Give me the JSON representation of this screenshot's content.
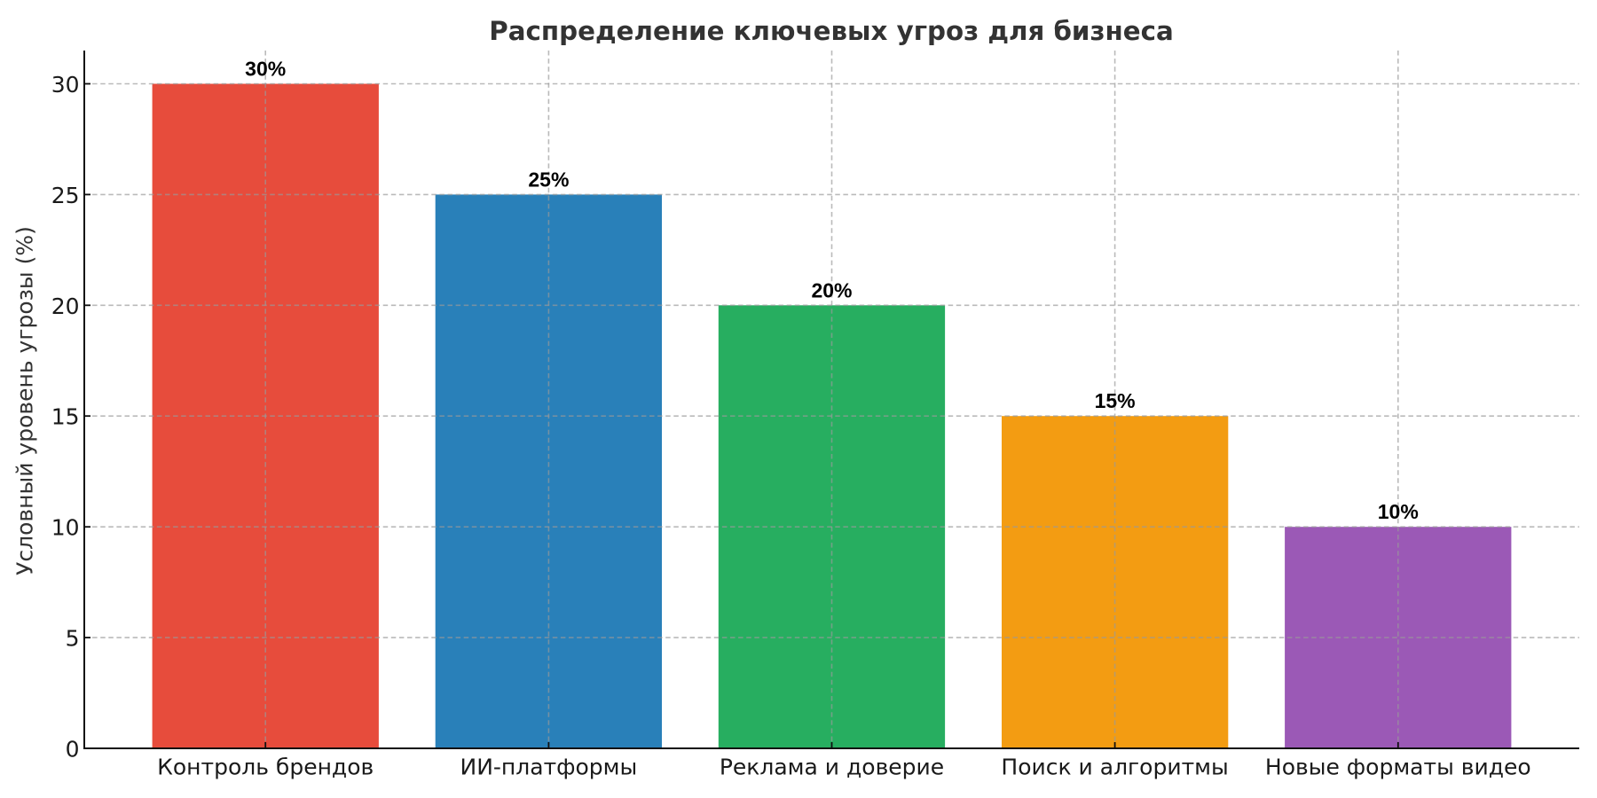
{
  "chart_data": {
    "type": "bar",
    "title": "Распределение ключевых угроз для бизнеса",
    "xlabel": "",
    "ylabel": "Условный уровень угрозы (%)",
    "categories": [
      "Контроль брендов",
      "ИИ-платформы",
      "Реклама и доверие",
      "Поиск и алгоритмы",
      "Новые форматы видео"
    ],
    "values": [
      30,
      25,
      20,
      15,
      10
    ],
    "value_labels": [
      "30%",
      "25%",
      "20%",
      "15%",
      "10%"
    ],
    "bar_colors": [
      "#e74c3c",
      "#2980b9",
      "#27ae60",
      "#f39c12",
      "#9b59b6"
    ],
    "yticks": [
      0,
      5,
      10,
      15,
      20,
      25,
      30
    ],
    "ytick_labels": [
      "0",
      "5",
      "10",
      "15",
      "20",
      "25",
      "30"
    ],
    "ylim": [
      0,
      31.5
    ],
    "grid": "dashed",
    "grid_color": "#b9b9b9",
    "axis_color": "#111111",
    "title_color": "#333333",
    "label_color": "#333333",
    "tick_color": "#1a1a1a",
    "value_label_color": "#000000",
    "legend": "none",
    "background": "#ffffff"
  }
}
